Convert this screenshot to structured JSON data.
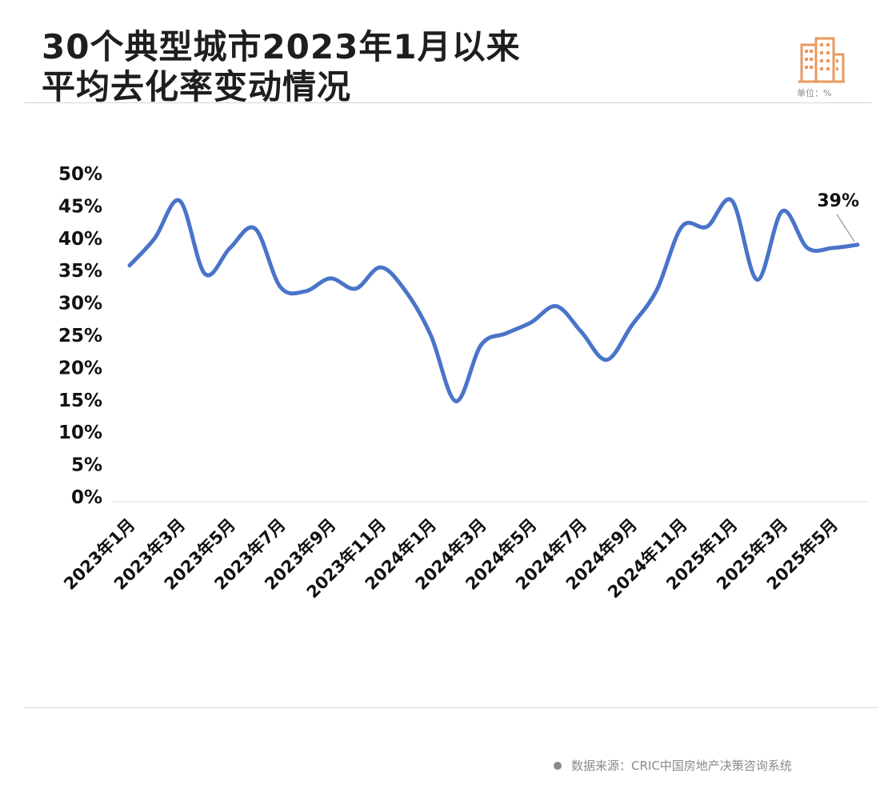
{
  "header": {
    "title_line1": "30个典型城市2023年1月以来",
    "title_line2": "平均去化率变动情况",
    "unit": "单位：%"
  },
  "footer": {
    "source": "数据来源：CRIC中国房地产决策咨询系统"
  },
  "colors": {
    "line": "#4a74c9",
    "logo": "#e89a5f",
    "rule": "#d6d6d6"
  },
  "icons": {
    "logo": "building-icon",
    "source_bullet": "dot-icon"
  },
  "chart_data": {
    "type": "line",
    "title": "30个典型城市2023年1月以来平均去化率变动情况",
    "xlabel": "",
    "ylabel": "",
    "y_unit": "%",
    "ylim": [
      0,
      50
    ],
    "y_ticks": [
      0,
      5,
      10,
      15,
      20,
      25,
      30,
      35,
      40,
      45,
      50
    ],
    "y_tick_labels": [
      "0%",
      "5%",
      "10%",
      "15%",
      "20%",
      "25%",
      "30%",
      "35%",
      "40%",
      "45%",
      "50%"
    ],
    "x_tick_labels": [
      "2023年1月",
      "2023年3月",
      "2023年5月",
      "2023年7月",
      "2023年9月",
      "2023年11月",
      "2024年1月",
      "2024年3月",
      "2024年5月",
      "2024年7月",
      "2024年9月",
      "2024年11月",
      "2025年1月",
      "2025年3月",
      "2025年5月"
    ],
    "x_tick_months": [
      0,
      2,
      4,
      6,
      8,
      10,
      12,
      14,
      16,
      18,
      20,
      22,
      24,
      26,
      28
    ],
    "grid": false,
    "legend": "none",
    "series": [
      {
        "months": [
          "2023-01",
          "2023-02",
          "2023-03",
          "2023-04",
          "2023-05",
          "2023-06",
          "2023-07",
          "2023-08",
          "2023-09",
          "2023-10",
          "2023-11",
          "2023-12",
          "2024-01",
          "2024-02",
          "2024-03",
          "2024-04",
          "2024-05",
          "2024-06",
          "2024-07",
          "2024-08",
          "2024-09",
          "2024-10",
          "2024-11",
          "2024-12",
          "2025-01",
          "2025-02",
          "2025-03",
          "2025-04",
          "2025-05",
          "2025-06"
        ],
        "values": [
          35.8,
          40.0,
          45.8,
          34.5,
          38.5,
          41.5,
          32.5,
          31.8,
          33.8,
          32.2,
          35.5,
          31.8,
          25.0,
          14.8,
          23.5,
          25.3,
          27.0,
          29.5,
          25.5,
          21.2,
          26.5,
          32.0,
          41.8,
          41.8,
          45.8,
          33.6,
          44.2,
          38.5,
          38.5,
          39.0
        ]
      }
    ],
    "annotations": [
      {
        "label": "39%",
        "index": 29
      }
    ]
  }
}
